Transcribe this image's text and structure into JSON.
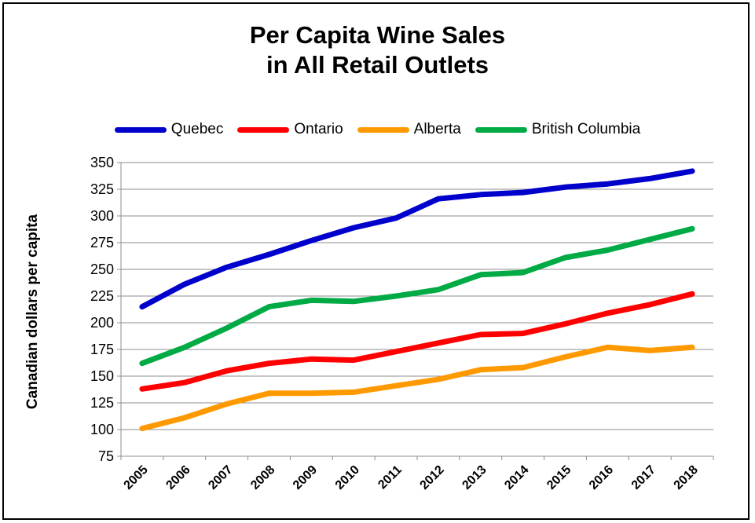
{
  "chart_data": {
    "type": "line",
    "title_lines": [
      "Per Capita Wine Sales",
      "in All Retail Outlets"
    ],
    "xlabel": "",
    "ylabel": "Canadian dollars per capita",
    "categories": [
      "2005",
      "2006",
      "2007",
      "2008",
      "2009",
      "2010",
      "2011",
      "2012",
      "2013",
      "2014",
      "2015",
      "2016",
      "2017",
      "2018"
    ],
    "ylim": [
      75,
      350
    ],
    "yticks": [
      75,
      100,
      125,
      150,
      175,
      200,
      225,
      250,
      275,
      300,
      325,
      350
    ],
    "grid": true,
    "legend_position": "top",
    "series": [
      {
        "name": "Quebec",
        "color": "#0000CC",
        "values": [
          215,
          236,
          252,
          264,
          277,
          289,
          298,
          316,
          320,
          322,
          327,
          330,
          335,
          342
        ]
      },
      {
        "name": "Ontario",
        "color": "#FF0000",
        "values": [
          138,
          144,
          155,
          162,
          166,
          165,
          173,
          181,
          189,
          190,
          199,
          209,
          217,
          227
        ]
      },
      {
        "name": "Alberta",
        "color": "#FF9900",
        "values": [
          101,
          111,
          124,
          134,
          134,
          135,
          141,
          147,
          156,
          158,
          168,
          177,
          174,
          177
        ]
      },
      {
        "name": "British Columbia",
        "color": "#00AA44",
        "values": [
          162,
          177,
          195,
          215,
          221,
          220,
          225,
          231,
          245,
          247,
          261,
          268,
          278,
          288
        ]
      }
    ]
  }
}
